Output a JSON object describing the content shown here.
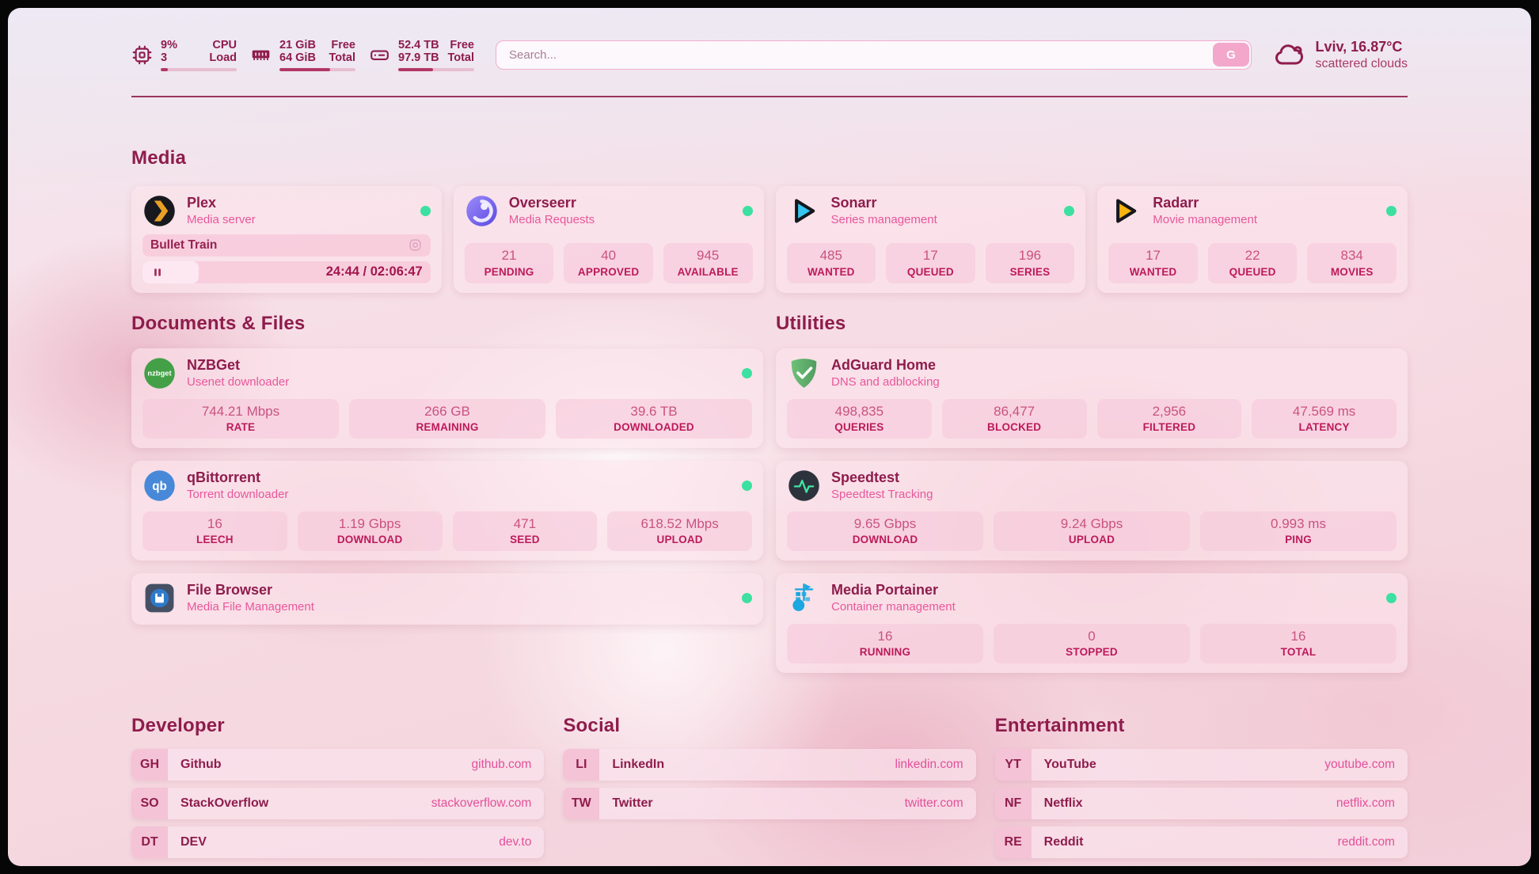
{
  "theme": {
    "accent_maroon": "#8e1c4c",
    "subtitle_pink": "#e8579c",
    "stat_label_pink": "#bc1a5b",
    "link_pink": "#e3509a",
    "status_online_green": "#3ce0a0"
  },
  "topbar": {
    "resources": [
      {
        "icon": "cpu-icon",
        "rows": [
          {
            "value": "9%",
            "label": "CPU"
          },
          {
            "value": "3",
            "label": "Load"
          }
        ],
        "progress_pct": 9
      },
      {
        "icon": "memory-icon",
        "rows": [
          {
            "value": "21 GiB",
            "label": "Free"
          },
          {
            "value": "64 GiB",
            "label": "Total"
          }
        ],
        "progress_pct": 67
      },
      {
        "icon": "disk-icon",
        "rows": [
          {
            "value": "52.4 TB",
            "label": "Free"
          },
          {
            "value": "97.9 TB",
            "label": "Total"
          }
        ],
        "progress_pct": 46
      }
    ],
    "search": {
      "placeholder": "Search...",
      "button": "G"
    },
    "weather": {
      "icon": "cloud-icon",
      "location": "Lviv, 16.87°C",
      "condition": "scattered clouds"
    }
  },
  "sections": {
    "media": {
      "title": "Media",
      "plex": {
        "icon": "plex-icon",
        "name": "Plex",
        "subtitle": "Media server",
        "status": "online",
        "now_playing": "Bullet Train",
        "time": "24:44 / 02:06:47",
        "progress_pct": 19.5
      },
      "cards": [
        {
          "icon": "overseerr-icon",
          "name": "Overseerr",
          "subtitle": "Media Requests",
          "status": "online",
          "stats": [
            {
              "value": "21",
              "label": "PENDING"
            },
            {
              "value": "40",
              "label": "APPROVED"
            },
            {
              "value": "945",
              "label": "AVAILABLE"
            }
          ]
        },
        {
          "icon": "sonarr-icon",
          "name": "Sonarr",
          "subtitle": "Series management",
          "status": "online",
          "stats": [
            {
              "value": "485",
              "label": "WANTED"
            },
            {
              "value": "17",
              "label": "QUEUED"
            },
            {
              "value": "196",
              "label": "SERIES"
            }
          ]
        },
        {
          "icon": "radarr-icon",
          "name": "Radarr",
          "subtitle": "Movie management",
          "status": "online",
          "stats": [
            {
              "value": "17",
              "label": "WANTED"
            },
            {
              "value": "22",
              "label": "QUEUED"
            },
            {
              "value": "834",
              "label": "MOVIES"
            }
          ]
        }
      ]
    },
    "documents": {
      "title": "Documents & Files",
      "cards": [
        {
          "icon": "nzbget-icon",
          "name": "NZBGet",
          "subtitle": "Usenet downloader",
          "status": "online",
          "stats": [
            {
              "value": "744.21 Mbps",
              "label": "RATE"
            },
            {
              "value": "266 GB",
              "label": "REMAINING"
            },
            {
              "value": "39.6 TB",
              "label": "DOWNLOADED"
            }
          ]
        },
        {
          "icon": "qbittorrent-icon",
          "name": "qBittorrent",
          "subtitle": "Torrent downloader",
          "status": "online",
          "stats": [
            {
              "value": "16",
              "label": "LEECH"
            },
            {
              "value": "1.19 Gbps",
              "label": "DOWNLOAD"
            },
            {
              "value": "471",
              "label": "SEED"
            },
            {
              "value": "618.52 Mbps",
              "label": "UPLOAD"
            }
          ]
        },
        {
          "icon": "filebrowser-icon",
          "name": "File Browser",
          "subtitle": "Media File Management",
          "status": "online",
          "stats": []
        }
      ]
    },
    "utilities": {
      "title": "Utilities",
      "cards": [
        {
          "icon": "adguard-icon",
          "name": "AdGuard Home",
          "subtitle": "DNS and adblocking",
          "stats": [
            {
              "value": "498,835",
              "label": "QUERIES"
            },
            {
              "value": "86,477",
              "label": "BLOCKED"
            },
            {
              "value": "2,956",
              "label": "FILTERED"
            },
            {
              "value": "47.569 ms",
              "label": "LATENCY"
            }
          ]
        },
        {
          "icon": "speedtest-icon",
          "name": "Speedtest",
          "subtitle": "Speedtest Tracking",
          "stats": [
            {
              "value": "9.65 Gbps",
              "label": "DOWNLOAD"
            },
            {
              "value": "9.24 Gbps",
              "label": "UPLOAD"
            },
            {
              "value": "0.993 ms",
              "label": "PING"
            }
          ]
        },
        {
          "icon": "portainer-icon",
          "name": "Media Portainer",
          "subtitle": "Container management",
          "status": "online",
          "stats": [
            {
              "value": "16",
              "label": "RUNNING"
            },
            {
              "value": "0",
              "label": "STOPPED"
            },
            {
              "value": "16",
              "label": "TOTAL"
            }
          ]
        }
      ]
    }
  },
  "bookmarks": [
    {
      "title": "Developer",
      "items": [
        {
          "abbr": "GH",
          "name": "Github",
          "url": "github.com"
        },
        {
          "abbr": "SO",
          "name": "StackOverflow",
          "url": "stackoverflow.com"
        },
        {
          "abbr": "DT",
          "name": "DEV",
          "url": "dev.to"
        }
      ]
    },
    {
      "title": "Social",
      "items": [
        {
          "abbr": "LI",
          "name": "LinkedIn",
          "url": "linkedin.com"
        },
        {
          "abbr": "TW",
          "name": "Twitter",
          "url": "twitter.com"
        }
      ]
    },
    {
      "title": "Entertainment",
      "items": [
        {
          "abbr": "YT",
          "name": "YouTube",
          "url": "youtube.com"
        },
        {
          "abbr": "NF",
          "name": "Netflix",
          "url": "netflix.com"
        },
        {
          "abbr": "RE",
          "name": "Reddit",
          "url": "reddit.com"
        }
      ]
    }
  ]
}
